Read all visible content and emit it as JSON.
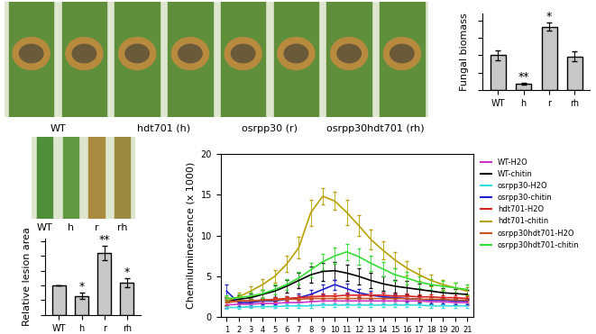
{
  "photos": [
    {
      "labels": [
        "WT",
        "hdt701 (h)",
        "osrpp30 (r)",
        "osrpp30hdt701 (rh)"
      ]
    },
    {
      "labels": [
        "WT",
        "h",
        "r",
        "rh"
      ]
    }
  ],
  "chart_data": [
    {
      "type": "bar",
      "ylabel": "Fungal biomass",
      "categories": [
        "WT",
        "h",
        "r",
        "rh"
      ],
      "values": [
        1.0,
        0.18,
        1.82,
        0.97
      ],
      "errors": [
        0.15,
        0.03,
        0.12,
        0.15
      ],
      "significance": [
        null,
        "**",
        "*",
        null
      ],
      "color": "#c8c8c8",
      "ylim": [
        0,
        2.2
      ],
      "yticks": [
        0,
        0.5,
        1,
        1.5,
        2
      ],
      "tick_labels": "x"
    },
    {
      "type": "bar",
      "ylabel": "Relative lesion area",
      "categories": [
        "WT",
        "h",
        "r",
        "rh"
      ],
      "values": [
        1.0,
        0.65,
        2.1,
        1.1
      ],
      "errors": [
        0.0,
        0.1,
        0.25,
        0.15
      ],
      "significance": [
        null,
        "*",
        "**",
        "*"
      ],
      "color": "#c8c8c8",
      "ylim": [
        0,
        2.6
      ],
      "yticks": [
        0,
        0.5,
        1,
        1.5,
        2,
        2.5
      ],
      "tick_labels": "x"
    },
    {
      "type": "line",
      "ylabel": "Chemiluminescence (x 1000)",
      "x": [
        1,
        2,
        3,
        4,
        5,
        6,
        7,
        8,
        9,
        10,
        11,
        12,
        13,
        14,
        15,
        16,
        17,
        18,
        19,
        20,
        21
      ],
      "xlim": [
        0.5,
        21.5
      ],
      "xticks": [
        1,
        2,
        3,
        4,
        5,
        6,
        7,
        8,
        9,
        10,
        11,
        12,
        13,
        14,
        15,
        16,
        17,
        18,
        19,
        20,
        21
      ],
      "ylim": [
        0,
        20
      ],
      "yticks": [
        0,
        5,
        10,
        15,
        20
      ],
      "legend": "upper left",
      "series": [
        {
          "name": "WT-H2O",
          "color": "#cc33cc",
          "values": [
            1.5,
            1.6,
            1.6,
            1.7,
            1.7,
            1.8,
            1.8,
            1.9,
            2.0,
            2.0,
            2.0,
            2.0,
            2.0,
            2.0,
            2.0,
            2.0,
            2.0,
            1.9,
            1.9,
            1.8,
            1.8
          ],
          "errors": [
            0.3,
            0.3,
            0.3,
            0.3,
            0.3,
            0.3,
            0.3,
            0.3,
            0.3,
            0.3,
            0.3,
            0.3,
            0.3,
            0.3,
            0.3,
            0.3,
            0.3,
            0.3,
            0.3,
            0.3,
            0.3
          ]
        },
        {
          "name": "WT-chitin",
          "color": "#000000",
          "values": [
            2.0,
            2.2,
            2.4,
            2.8,
            3.2,
            3.8,
            4.5,
            5.2,
            5.6,
            5.7,
            5.4,
            5.0,
            4.5,
            4.1,
            3.8,
            3.6,
            3.4,
            3.2,
            3.0,
            2.9,
            2.8
          ],
          "errors": [
            0.5,
            0.5,
            0.5,
            0.6,
            0.7,
            0.8,
            0.9,
            1.0,
            1.1,
            1.1,
            1.0,
            1.0,
            0.9,
            0.9,
            0.8,
            0.8,
            0.7,
            0.7,
            0.6,
            0.6,
            0.6
          ]
        },
        {
          "name": "osrpp30-H2O",
          "color": "#33dddd",
          "values": [
            1.2,
            1.2,
            1.3,
            1.3,
            1.3,
            1.4,
            1.4,
            1.4,
            1.5,
            1.5,
            1.5,
            1.5,
            1.5,
            1.5,
            1.5,
            1.5,
            1.5,
            1.4,
            1.4,
            1.4,
            1.4
          ],
          "errors": [
            0.2,
            0.2,
            0.2,
            0.2,
            0.2,
            0.2,
            0.2,
            0.2,
            0.2,
            0.2,
            0.2,
            0.2,
            0.2,
            0.2,
            0.2,
            0.2,
            0.2,
            0.2,
            0.2,
            0.2,
            0.2
          ]
        },
        {
          "name": "osrpp30-chitin",
          "color": "#1f1fcc",
          "values": [
            3.2,
            1.8,
            1.8,
            2.0,
            2.0,
            2.2,
            2.4,
            2.8,
            3.4,
            4.0,
            3.5,
            3.0,
            2.7,
            2.5,
            2.4,
            2.3,
            2.2,
            2.1,
            2.1,
            2.0,
            2.0
          ],
          "errors": [
            0.8,
            0.4,
            0.4,
            0.4,
            0.4,
            0.4,
            0.5,
            0.5,
            0.6,
            0.6,
            0.6,
            0.5,
            0.5,
            0.5,
            0.4,
            0.4,
            0.4,
            0.4,
            0.4,
            0.4,
            0.4
          ]
        },
        {
          "name": "hdt701-H2O",
          "color": "#dd2222",
          "values": [
            1.8,
            2.0,
            2.0,
            2.1,
            2.2,
            2.3,
            2.4,
            2.5,
            2.6,
            2.6,
            2.7,
            2.7,
            2.7,
            2.7,
            2.6,
            2.6,
            2.5,
            2.5,
            2.4,
            2.4,
            2.3
          ],
          "errors": [
            0.3,
            0.3,
            0.3,
            0.3,
            0.3,
            0.3,
            0.3,
            0.3,
            0.3,
            0.3,
            0.3,
            0.3,
            0.3,
            0.3,
            0.3,
            0.3,
            0.3,
            0.3,
            0.3,
            0.3,
            0.3
          ]
        },
        {
          "name": "hdt701-chitin",
          "color": "#b8a000",
          "values": [
            2.0,
            2.5,
            3.2,
            4.0,
            5.0,
            6.5,
            8.5,
            12.8,
            14.8,
            14.2,
            12.8,
            11.2,
            9.5,
            8.2,
            7.0,
            6.0,
            5.2,
            4.5,
            4.0,
            3.6,
            3.2
          ],
          "errors": [
            0.5,
            0.5,
            0.6,
            0.7,
            0.8,
            1.0,
            1.3,
            1.6,
            1.0,
            1.1,
            1.5,
            1.3,
            1.2,
            1.1,
            1.0,
            0.9,
            0.8,
            0.7,
            0.6,
            0.6,
            0.5
          ]
        },
        {
          "name": "osrpp30hdt701-H2O",
          "color": "#c8561e",
          "values": [
            1.8,
            2.0,
            2.0,
            2.1,
            2.1,
            2.2,
            2.2,
            2.3,
            2.3,
            2.3,
            2.3,
            2.3,
            2.3,
            2.3,
            2.3,
            2.3,
            2.2,
            2.2,
            2.2,
            2.1,
            2.1
          ],
          "errors": [
            0.3,
            0.3,
            0.3,
            0.3,
            0.3,
            0.3,
            0.3,
            0.3,
            0.3,
            0.3,
            0.3,
            0.3,
            0.3,
            0.3,
            0.3,
            0.3,
            0.3,
            0.3,
            0.3,
            0.3,
            0.3
          ]
        },
        {
          "name": "osrpp30hdt701-chitin",
          "color": "#33dd33",
          "values": [
            2.3,
            2.4,
            2.6,
            2.9,
            3.4,
            4.0,
            4.8,
            5.8,
            6.8,
            7.5,
            8.0,
            7.4,
            6.6,
            5.9,
            5.2,
            4.8,
            4.3,
            4.0,
            3.8,
            3.6,
            3.4
          ],
          "errors": [
            0.4,
            0.4,
            0.5,
            0.5,
            0.6,
            0.7,
            0.8,
            0.9,
            1.0,
            1.0,
            1.0,
            1.0,
            0.9,
            0.9,
            0.8,
            0.8,
            0.7,
            0.7,
            0.6,
            0.6,
            0.6
          ]
        }
      ]
    }
  ]
}
